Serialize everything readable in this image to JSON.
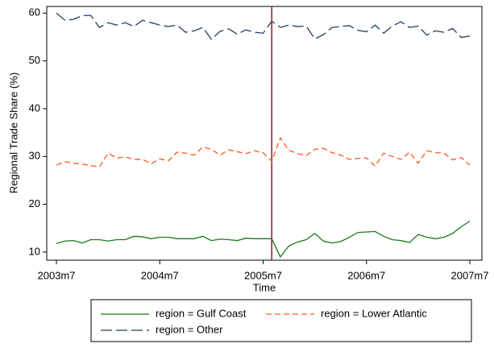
{
  "chart_data": {
    "type": "line",
    "y_label": "Regional Trade Share (%)",
    "x_label": "Time",
    "categories": [
      "2003m7",
      null,
      null,
      null,
      null,
      null,
      null,
      null,
      null,
      null,
      null,
      null,
      "2004m7",
      null,
      null,
      null,
      null,
      null,
      null,
      null,
      null,
      null,
      null,
      null,
      "2005m7",
      null,
      null,
      null,
      null,
      null,
      null,
      null,
      null,
      null,
      null,
      null,
      "2006m7",
      null,
      null,
      null,
      null,
      null,
      null,
      null,
      null,
      null,
      null,
      null,
      "2007m7"
    ],
    "vline_at": 25,
    "vline_color": "#8b1a2b",
    "ylim": [
      8.3,
      61.4
    ],
    "yticks": [
      10,
      20,
      30,
      40,
      50,
      60
    ],
    "series": [
      {
        "name": "region = Gulf Coast",
        "color": "#1a7a1a",
        "style": "solid",
        "values": [
          11.8,
          12.3,
          12.4,
          11.9,
          12.6,
          12.6,
          12.3,
          12.6,
          12.6,
          13.3,
          13.2,
          12.8,
          13.1,
          13.1,
          12.8,
          12.8,
          12.8,
          13.3,
          12.4,
          12.7,
          12.6,
          12.4,
          12.9,
          12.8,
          12.8,
          12.8,
          9.0,
          11.3,
          12.1,
          12.6,
          13.9,
          12.3,
          11.9,
          12.2,
          13.1,
          14.1,
          14.2,
          14.3,
          13.3,
          12.6,
          12.4,
          12.0,
          13.7,
          13.1,
          12.8,
          13.1,
          13.9,
          15.3,
          16.5
        ]
      },
      {
        "name": "region = Lower Atlantic",
        "color": "#ff5a1f",
        "style": "dash",
        "values": [
          28.2,
          28.9,
          28.6,
          28.4,
          28.1,
          27.8,
          30.7,
          29.7,
          29.9,
          29.4,
          29.4,
          28.5,
          29.5,
          29.1,
          30.9,
          30.7,
          30.3,
          32,
          31.5,
          30.3,
          31.4,
          31,
          30.6,
          31.2,
          30.8,
          29.0,
          33.9,
          31.3,
          30.6,
          30.2,
          31.5,
          31.7,
          30.8,
          30.3,
          29.4,
          29.6,
          29.7,
          28.0,
          30.7,
          30.0,
          29.4,
          30.9,
          28.6,
          31.2,
          30.8,
          30.7,
          29.3,
          29.8,
          28.2
        ]
      },
      {
        "name": "region = Other",
        "color": "#1f3f66",
        "style": "longdash",
        "values": [
          60,
          58.5,
          58.7,
          59.5,
          59.5,
          57,
          58,
          57.5,
          58,
          57.2,
          58.5,
          58,
          57.5,
          57.2,
          57.5,
          56,
          56.3,
          57,
          54.5,
          56.2,
          56.7,
          55.6,
          56.5,
          56,
          55.8,
          58.3,
          57,
          57.5,
          57.2,
          57.3,
          54.6,
          55.5,
          57,
          57.2,
          57.4,
          56.4,
          56.1,
          57.5,
          55.8,
          57.3,
          58.2,
          57,
          57.3,
          55.4,
          56.3,
          56,
          56.8,
          54.9,
          55.2
        ]
      }
    ]
  }
}
